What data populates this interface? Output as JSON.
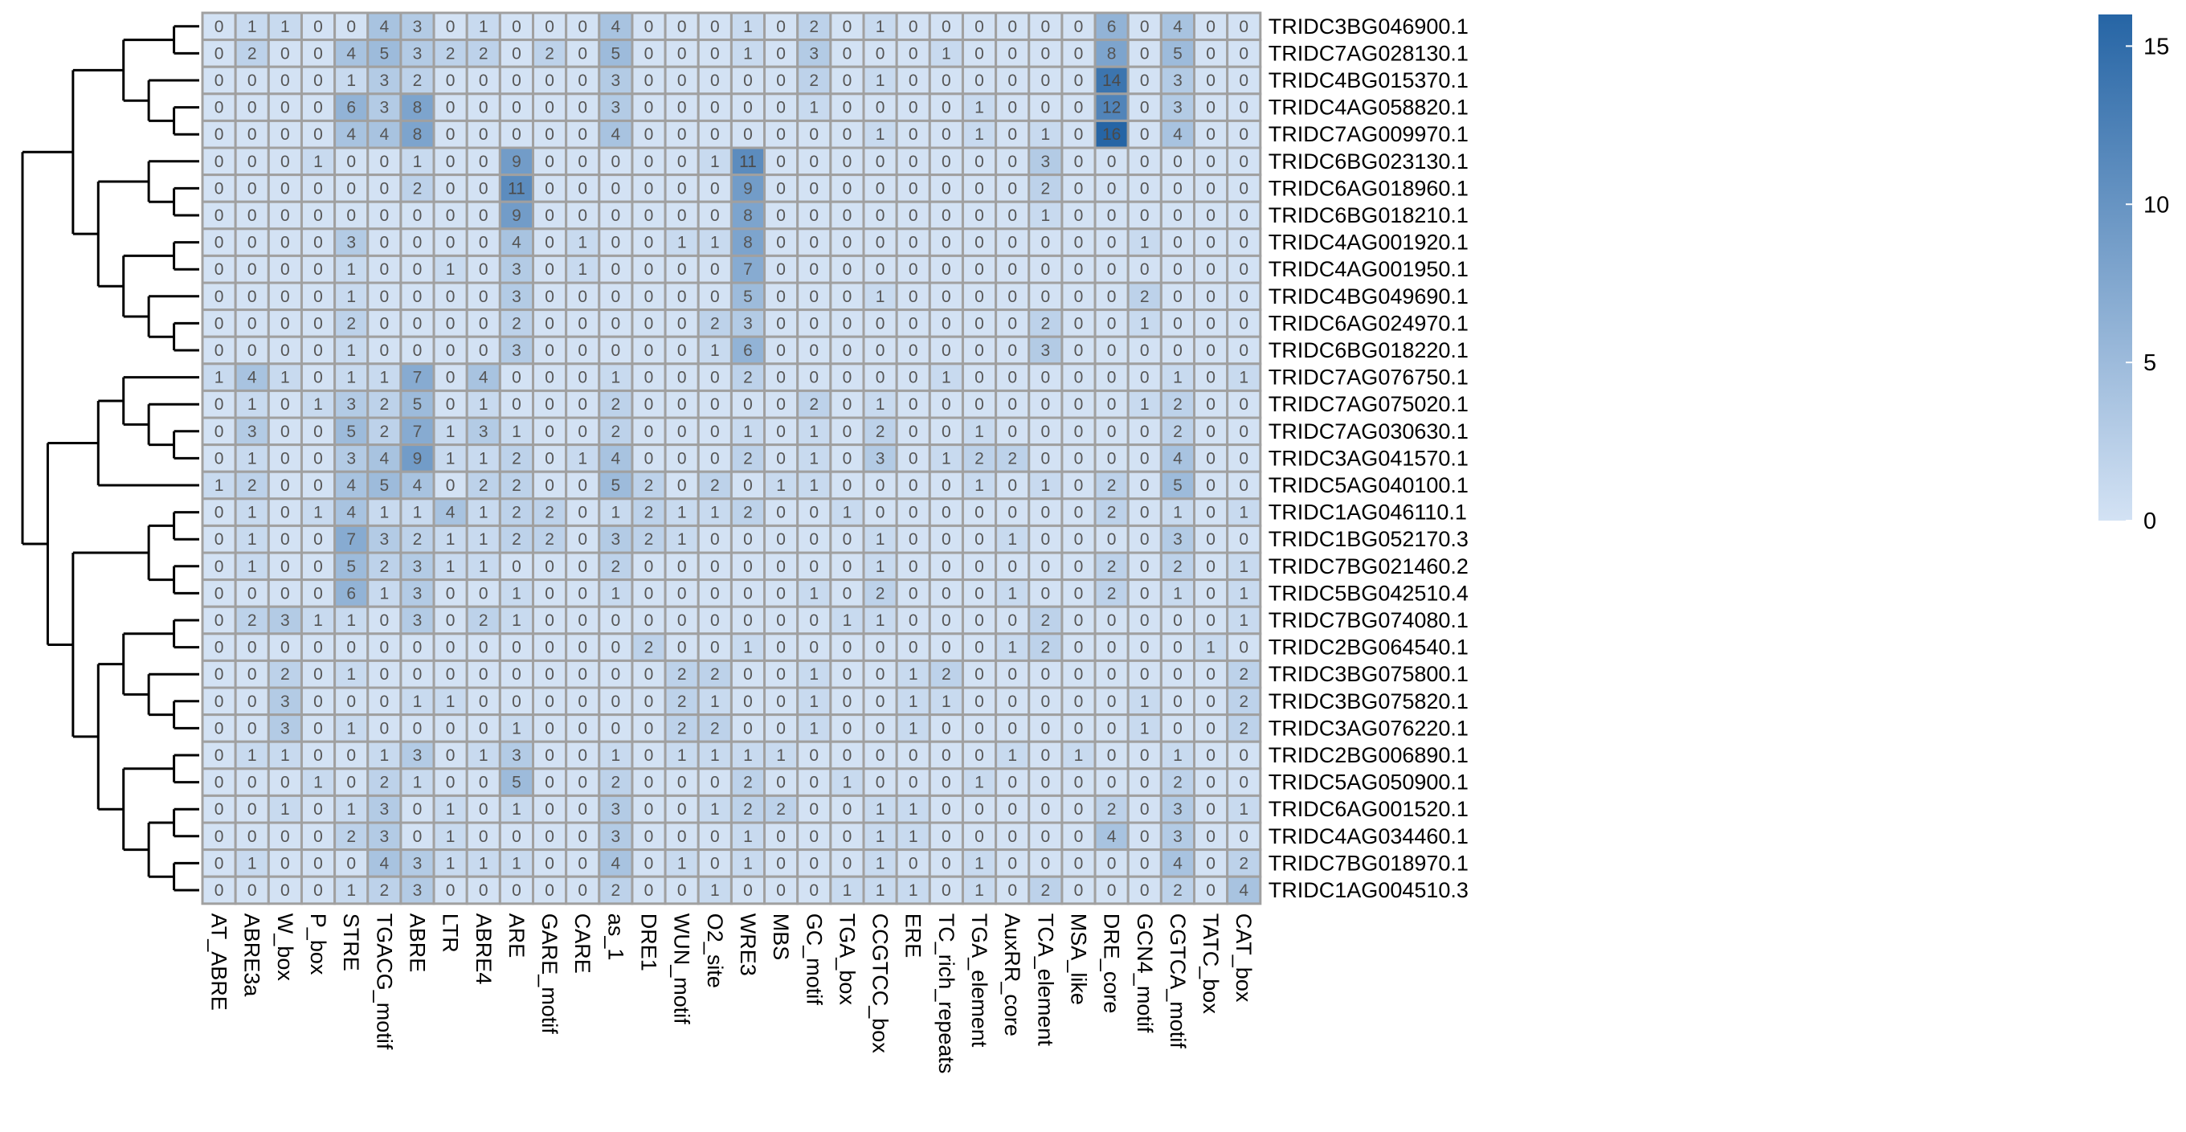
{
  "chart_data": {
    "type": "heatmap",
    "title": "",
    "xlabel": "",
    "ylabel": "",
    "columns": [
      "AT_ABRE",
      "ABRE3a",
      "W_box",
      "P_box",
      "STRE",
      "TGACG_motif",
      "ABRE",
      "LTR",
      "ABRE4",
      "ARE",
      "GARE_motif",
      "CARE",
      "as_1",
      "DRE1",
      "WUN_motif",
      "O2_site",
      "WRE3",
      "MBS",
      "GC_motif",
      "TGA_box",
      "CCGTCC_box",
      "ERE",
      "TC_rich_repeats",
      "TGA_element",
      "AuxRR_core",
      "TCA_element",
      "MSA_like",
      "DRE_core",
      "GCN4_motif",
      "CGTCA_motif",
      "TATC_box",
      "CAT_box"
    ],
    "rows": [
      "TRIDC3BG046900.1",
      "TRIDC7AG028130.1",
      "TRIDC4BG015370.1",
      "TRIDC4AG058820.1",
      "TRIDC7AG009970.1",
      "TRIDC6BG023130.1",
      "TRIDC6AG018960.1",
      "TRIDC6BG018210.1",
      "TRIDC4AG001920.1",
      "TRIDC4AG001950.1",
      "TRIDC4BG049690.1",
      "TRIDC6AG024970.1",
      "TRIDC6BG018220.1",
      "TRIDC7AG076750.1",
      "TRIDC7AG075020.1",
      "TRIDC7AG030630.1",
      "TRIDC3AG041570.1",
      "TRIDC5AG040100.1",
      "TRIDC1AG046110.1",
      "TRIDC1BG052170.3",
      "TRIDC7BG021460.2",
      "TRIDC5BG042510.4",
      "TRIDC7BG074080.1",
      "TRIDC2BG064540.1",
      "TRIDC3BG075800.1",
      "TRIDC3BG075820.1",
      "TRIDC3AG076220.1",
      "TRIDC2BG006890.1",
      "TRIDC5AG050900.1",
      "TRIDC6AG001520.1",
      "TRIDC4AG034460.1",
      "TRIDC7BG018970.1",
      "TRIDC1AG004510.3"
    ],
    "values": [
      [
        0,
        1,
        1,
        0,
        0,
        4,
        3,
        0,
        1,
        0,
        0,
        0,
        4,
        0,
        0,
        0,
        1,
        0,
        2,
        0,
        1,
        0,
        0,
        0,
        0,
        0,
        0,
        6,
        0,
        4,
        0,
        0
      ],
      [
        0,
        2,
        0,
        0,
        4,
        5,
        3,
        2,
        2,
        0,
        2,
        0,
        5,
        0,
        0,
        0,
        1,
        0,
        3,
        0,
        0,
        0,
        1,
        0,
        0,
        0,
        0,
        8,
        0,
        5,
        0,
        0
      ],
      [
        0,
        0,
        0,
        0,
        1,
        3,
        2,
        0,
        0,
        0,
        0,
        0,
        3,
        0,
        0,
        0,
        0,
        0,
        2,
        0,
        1,
        0,
        0,
        0,
        0,
        0,
        0,
        14,
        0,
        3,
        0,
        0
      ],
      [
        0,
        0,
        0,
        0,
        6,
        3,
        8,
        0,
        0,
        0,
        0,
        0,
        3,
        0,
        0,
        0,
        0,
        0,
        1,
        0,
        0,
        0,
        0,
        1,
        0,
        0,
        0,
        12,
        0,
        3,
        0,
        0
      ],
      [
        0,
        0,
        0,
        0,
        4,
        4,
        8,
        0,
        0,
        0,
        0,
        0,
        4,
        0,
        0,
        0,
        0,
        0,
        0,
        0,
        1,
        0,
        0,
        1,
        0,
        1,
        0,
        16,
        0,
        4,
        0,
        0
      ],
      [
        0,
        0,
        0,
        1,
        0,
        0,
        1,
        0,
        0,
        9,
        0,
        0,
        0,
        0,
        0,
        1,
        11,
        0,
        0,
        0,
        0,
        0,
        0,
        0,
        0,
        3,
        0,
        0,
        0,
        0,
        0,
        0
      ],
      [
        0,
        0,
        0,
        0,
        0,
        0,
        2,
        0,
        0,
        11,
        0,
        0,
        0,
        0,
        0,
        0,
        9,
        0,
        0,
        0,
        0,
        0,
        0,
        0,
        0,
        2,
        0,
        0,
        0,
        0,
        0,
        0
      ],
      [
        0,
        0,
        0,
        0,
        0,
        0,
        0,
        0,
        0,
        9,
        0,
        0,
        0,
        0,
        0,
        0,
        8,
        0,
        0,
        0,
        0,
        0,
        0,
        0,
        0,
        1,
        0,
        0,
        0,
        0,
        0,
        0
      ],
      [
        0,
        0,
        0,
        0,
        3,
        0,
        0,
        0,
        0,
        4,
        0,
        1,
        0,
        0,
        1,
        1,
        8,
        0,
        0,
        0,
        0,
        0,
        0,
        0,
        0,
        0,
        0,
        0,
        1,
        0,
        0,
        0
      ],
      [
        0,
        0,
        0,
        0,
        1,
        0,
        0,
        1,
        0,
        3,
        0,
        1,
        0,
        0,
        0,
        0,
        7,
        0,
        0,
        0,
        0,
        0,
        0,
        0,
        0,
        0,
        0,
        0,
        0,
        0,
        0,
        0
      ],
      [
        0,
        0,
        0,
        0,
        1,
        0,
        0,
        0,
        0,
        3,
        0,
        0,
        0,
        0,
        0,
        0,
        5,
        0,
        0,
        0,
        1,
        0,
        0,
        0,
        0,
        0,
        0,
        0,
        2,
        0,
        0,
        0
      ],
      [
        0,
        0,
        0,
        0,
        2,
        0,
        0,
        0,
        0,
        2,
        0,
        0,
        0,
        0,
        0,
        2,
        3,
        0,
        0,
        0,
        0,
        0,
        0,
        0,
        0,
        2,
        0,
        0,
        1,
        0,
        0,
        0
      ],
      [
        0,
        0,
        0,
        0,
        1,
        0,
        0,
        0,
        0,
        3,
        0,
        0,
        0,
        0,
        0,
        1,
        6,
        0,
        0,
        0,
        0,
        0,
        0,
        0,
        0,
        3,
        0,
        0,
        0,
        0,
        0,
        0
      ],
      [
        1,
        4,
        1,
        0,
        1,
        1,
        7,
        0,
        4,
        0,
        0,
        0,
        1,
        0,
        0,
        0,
        2,
        0,
        0,
        0,
        0,
        0,
        1,
        0,
        0,
        0,
        0,
        0,
        0,
        1,
        0,
        1
      ],
      [
        0,
        1,
        0,
        1,
        3,
        2,
        5,
        0,
        1,
        0,
        0,
        0,
        2,
        0,
        0,
        0,
        0,
        0,
        2,
        0,
        1,
        0,
        0,
        0,
        0,
        0,
        0,
        0,
        1,
        2,
        0,
        0
      ],
      [
        0,
        3,
        0,
        0,
        5,
        2,
        7,
        1,
        3,
        1,
        0,
        0,
        2,
        0,
        0,
        0,
        1,
        0,
        1,
        0,
        2,
        0,
        0,
        1,
        0,
        0,
        0,
        0,
        0,
        2,
        0,
        0
      ],
      [
        0,
        1,
        0,
        0,
        3,
        4,
        9,
        1,
        1,
        2,
        0,
        1,
        4,
        0,
        0,
        0,
        2,
        0,
        1,
        0,
        3,
        0,
        1,
        2,
        2,
        0,
        0,
        0,
        0,
        4,
        0,
        0
      ],
      [
        1,
        2,
        0,
        0,
        4,
        5,
        4,
        0,
        2,
        2,
        0,
        0,
        5,
        2,
        0,
        2,
        0,
        1,
        1,
        0,
        0,
        0,
        0,
        1,
        0,
        1,
        0,
        2,
        0,
        5,
        0,
        0
      ],
      [
        0,
        1,
        0,
        1,
        4,
        1,
        1,
        4,
        1,
        2,
        2,
        0,
        1,
        2,
        1,
        1,
        2,
        0,
        0,
        1,
        0,
        0,
        0,
        0,
        0,
        0,
        0,
        2,
        0,
        1,
        0,
        1
      ],
      [
        0,
        1,
        0,
        0,
        7,
        3,
        2,
        1,
        1,
        2,
        2,
        0,
        3,
        2,
        1,
        0,
        0,
        0,
        0,
        0,
        1,
        0,
        0,
        0,
        1,
        0,
        0,
        0,
        0,
        3,
        0,
        0
      ],
      [
        0,
        1,
        0,
        0,
        5,
        2,
        3,
        1,
        1,
        0,
        0,
        0,
        2,
        0,
        0,
        0,
        0,
        0,
        0,
        0,
        1,
        0,
        0,
        0,
        0,
        0,
        0,
        2,
        0,
        2,
        0,
        1
      ],
      [
        0,
        0,
        0,
        0,
        6,
        1,
        3,
        0,
        0,
        1,
        0,
        0,
        1,
        0,
        0,
        0,
        0,
        0,
        1,
        0,
        2,
        0,
        0,
        0,
        1,
        0,
        0,
        2,
        0,
        1,
        0,
        1
      ],
      [
        0,
        2,
        3,
        1,
        1,
        0,
        3,
        0,
        2,
        1,
        0,
        0,
        0,
        0,
        0,
        0,
        0,
        0,
        0,
        1,
        1,
        0,
        0,
        0,
        0,
        2,
        0,
        0,
        0,
        0,
        0,
        1
      ],
      [
        0,
        0,
        0,
        0,
        0,
        0,
        0,
        0,
        0,
        0,
        0,
        0,
        0,
        2,
        0,
        0,
        1,
        0,
        0,
        0,
        0,
        0,
        0,
        0,
        1,
        2,
        0,
        0,
        0,
        0,
        1,
        0
      ],
      [
        0,
        0,
        2,
        0,
        1,
        0,
        0,
        0,
        0,
        0,
        0,
        0,
        0,
        0,
        2,
        2,
        0,
        0,
        1,
        0,
        0,
        1,
        2,
        0,
        0,
        0,
        0,
        0,
        0,
        0,
        0,
        2
      ],
      [
        0,
        0,
        3,
        0,
        0,
        0,
        1,
        1,
        0,
        0,
        0,
        0,
        0,
        0,
        2,
        1,
        0,
        0,
        1,
        0,
        0,
        1,
        1,
        0,
        0,
        0,
        0,
        0,
        1,
        0,
        0,
        2
      ],
      [
        0,
        0,
        3,
        0,
        1,
        0,
        0,
        0,
        0,
        1,
        0,
        0,
        0,
        0,
        2,
        2,
        0,
        0,
        1,
        0,
        0,
        1,
        0,
        0,
        0,
        0,
        0,
        0,
        1,
        0,
        0,
        2
      ],
      [
        0,
        1,
        1,
        0,
        0,
        1,
        3,
        0,
        1,
        3,
        0,
        0,
        1,
        0,
        1,
        1,
        1,
        1,
        0,
        0,
        0,
        0,
        0,
        0,
        1,
        0,
        1,
        0,
        0,
        1,
        0,
        0
      ],
      [
        0,
        0,
        0,
        1,
        0,
        2,
        1,
        0,
        0,
        5,
        0,
        0,
        2,
        0,
        0,
        0,
        2,
        0,
        0,
        1,
        0,
        0,
        0,
        1,
        0,
        0,
        0,
        0,
        0,
        2,
        0,
        0
      ],
      [
        0,
        0,
        1,
        0,
        1,
        3,
        0,
        1,
        0,
        1,
        0,
        0,
        3,
        0,
        0,
        1,
        2,
        2,
        0,
        0,
        1,
        1,
        0,
        0,
        0,
        0,
        0,
        2,
        0,
        3,
        0,
        1
      ],
      [
        0,
        0,
        0,
        0,
        2,
        3,
        0,
        1,
        0,
        0,
        0,
        0,
        3,
        0,
        0,
        0,
        1,
        0,
        0,
        0,
        1,
        1,
        0,
        0,
        0,
        0,
        0,
        4,
        0,
        3,
        0,
        0
      ],
      [
        0,
        1,
        0,
        0,
        0,
        4,
        3,
        1,
        1,
        1,
        0,
        0,
        4,
        0,
        1,
        0,
        1,
        0,
        0,
        0,
        1,
        0,
        0,
        1,
        0,
        0,
        0,
        0,
        0,
        4,
        0,
        2
      ],
      [
        0,
        0,
        0,
        0,
        1,
        2,
        3,
        0,
        0,
        0,
        0,
        0,
        2,
        0,
        0,
        1,
        0,
        0,
        0,
        1,
        1,
        1,
        0,
        1,
        0,
        2,
        0,
        0,
        0,
        2,
        0,
        4
      ]
    ],
    "color_scale": {
      "min": 0,
      "max": 16,
      "low_color": "#d3e2f4",
      "high_color": "#2665a5"
    },
    "legend": {
      "ticks": [
        0,
        5,
        10,
        15
      ],
      "placement": "top-right"
    },
    "grid": true,
    "row_dendrogram": true,
    "cell_border_color": "#a0a0a0",
    "tree": {
      "ch": [
        {
          "ch": [
            {
              "ch": [
                {
                  "ch": [
                    0,
                    1
                  ]
                },
                {
                  "ch": [
                    2,
                    {
                      "ch": [
                        3,
                        4
                      ]
                    }
                  ]
                }
              ]
            },
            {
              "ch": [
                {
                  "ch": [
                    5,
                    {
                      "ch": [
                        6,
                        7
                      ]
                    }
                  ]
                },
                {
                  "ch": [
                    {
                      "ch": [
                        8,
                        9
                      ]
                    },
                    {
                      "ch": [
                        10,
                        {
                          "ch": [
                            11,
                            12
                          ]
                        }
                      ]
                    }
                  ]
                }
              ]
            }
          ]
        },
        {
          "ch": [
            {
              "ch": [
                {
                  "ch": [
                    13,
                    {
                      "ch": [
                        14,
                        {
                          "ch": [
                            15,
                            16
                          ]
                        }
                      ]
                    }
                  ]
                },
                17
              ]
            },
            {
              "ch": [
                {
                  "ch": [
                    {
                      "ch": [
                        18,
                        19
                      ]
                    },
                    {
                      "ch": [
                        20,
                        21
                      ]
                    }
                  ]
                },
                {
                  "ch": [
                    {
                      "ch": [
                        {
                          "ch": [
                            22,
                            23
                          ]
                        },
                        {
                          "ch": [
                            24,
                            {
                              "ch": [
                                25,
                                26
                              ]
                            }
                          ]
                        }
                      ]
                    },
                    {
                      "ch": [
                        {
                          "ch": [
                            27,
                            28
                          ]
                        },
                        {
                          "ch": [
                            {
                              "ch": [
                                29,
                                30
                              ]
                            },
                            {
                              "ch": [
                                31,
                                32
                              ]
                            }
                          ]
                        }
                      ]
                    }
                  ]
                }
              ]
            }
          ]
        }
      ]
    }
  }
}
